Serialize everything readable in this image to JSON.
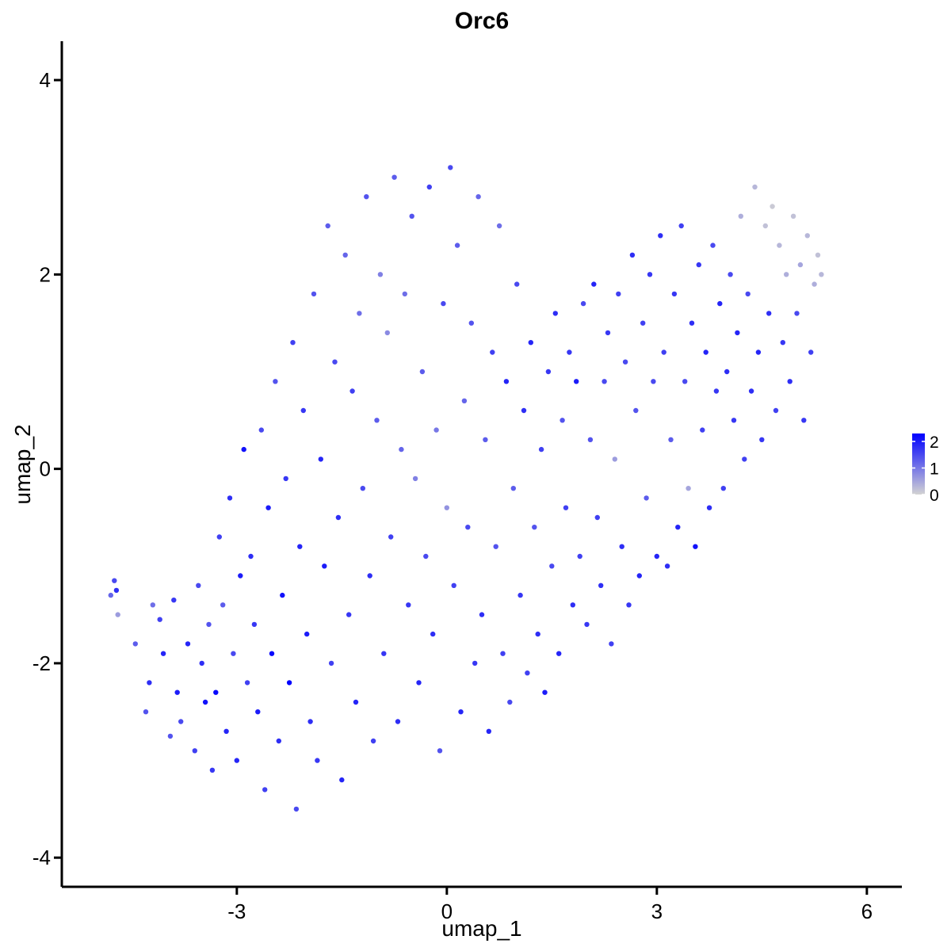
{
  "chart_data": {
    "type": "scatter",
    "title": "Orc6",
    "xlabel": "umap_1",
    "ylabel": "umap_2",
    "xlim": [
      -5.5,
      6.5
    ],
    "ylim": [
      -4.3,
      4.4
    ],
    "x_ticks": [
      -3,
      0,
      3,
      6
    ],
    "y_ticks": [
      -4,
      -2,
      0,
      2,
      4
    ],
    "grid": false,
    "colors": {
      "low": "#d3d3d3",
      "high": "#0000ff"
    },
    "legend": {
      "placement": "right",
      "ticks": [
        0,
        1,
        2
      ],
      "range": [
        0,
        2.3
      ]
    },
    "points": [
      [
        -4.8,
        -1.3,
        1.2
      ],
      [
        -4.75,
        -1.15,
        1.5
      ],
      [
        -4.72,
        -1.25,
        1.8
      ],
      [
        -4.7,
        -1.5,
        0.6
      ],
      [
        -4.45,
        -1.8,
        1.3
      ],
      [
        -4.3,
        -2.5,
        1.4
      ],
      [
        -4.25,
        -2.2,
        1.8
      ],
      [
        -4.2,
        -1.4,
        1.1
      ],
      [
        -4.1,
        -1.55,
        1.6
      ],
      [
        -4.05,
        -1.9,
        1.9
      ],
      [
        -3.95,
        -2.75,
        1.4
      ],
      [
        -3.9,
        -1.35,
        1.7
      ],
      [
        -3.85,
        -2.3,
        2.0
      ],
      [
        -3.8,
        -2.6,
        1.5
      ],
      [
        -3.7,
        -1.8,
        1.9
      ],
      [
        -3.6,
        -2.9,
        1.6
      ],
      [
        -3.55,
        -1.2,
        1.5
      ],
      [
        -3.5,
        -2.0,
        1.8
      ],
      [
        -3.45,
        -2.4,
        2.1
      ],
      [
        -3.4,
        -1.6,
        1.4
      ],
      [
        -3.35,
        -3.1,
        1.7
      ],
      [
        -3.3,
        -2.3,
        2.2
      ],
      [
        -3.25,
        -0.7,
        1.6
      ],
      [
        -3.2,
        -1.4,
        1.3
      ],
      [
        -3.15,
        -2.7,
        1.9
      ],
      [
        -3.1,
        -0.3,
        1.8
      ],
      [
        -3.05,
        -1.9,
        1.5
      ],
      [
        -3.0,
        -3.0,
        1.9
      ],
      [
        -2.95,
        -1.1,
        2.0
      ],
      [
        -2.9,
        0.2,
        2.1
      ],
      [
        -2.85,
        -2.2,
        1.6
      ],
      [
        -2.8,
        -0.9,
        1.8
      ],
      [
        -2.75,
        -1.6,
        1.7
      ],
      [
        -2.7,
        -2.5,
        2.0
      ],
      [
        -2.65,
        0.4,
        1.5
      ],
      [
        -2.6,
        -3.3,
        1.6
      ],
      [
        -2.55,
        -0.4,
        2.0
      ],
      [
        -2.5,
        -1.9,
        2.2
      ],
      [
        -2.45,
        0.9,
        1.4
      ],
      [
        -2.4,
        -2.8,
        1.8
      ],
      [
        -2.35,
        -1.3,
        2.1
      ],
      [
        -2.3,
        -0.1,
        1.7
      ],
      [
        -2.25,
        -2.2,
        2.3
      ],
      [
        -2.2,
        1.3,
        1.6
      ],
      [
        -2.15,
        -3.5,
        1.5
      ],
      [
        -2.1,
        -0.8,
        1.9
      ],
      [
        -2.05,
        0.6,
        1.7
      ],
      [
        -2.0,
        -1.7,
        2.0
      ],
      [
        -1.95,
        -2.6,
        1.8
      ],
      [
        -1.9,
        1.8,
        1.4
      ],
      [
        -1.85,
        -3.0,
        1.7
      ],
      [
        -1.8,
        0.1,
        1.9
      ],
      [
        -1.75,
        -1.0,
        2.0
      ],
      [
        -1.7,
        2.5,
        1.3
      ],
      [
        -1.65,
        -2.0,
        1.6
      ],
      [
        -1.6,
        1.1,
        1.5
      ],
      [
        -1.55,
        -0.5,
        1.8
      ],
      [
        -1.5,
        -3.2,
        1.9
      ],
      [
        -1.45,
        2.2,
        1.2
      ],
      [
        -1.4,
        -1.5,
        1.7
      ],
      [
        -1.35,
        0.8,
        1.6
      ],
      [
        -1.3,
        -2.4,
        1.9
      ],
      [
        -1.25,
        1.6,
        1.1
      ],
      [
        -1.2,
        -0.2,
        1.5
      ],
      [
        -1.15,
        2.8,
        1.4
      ],
      [
        -1.1,
        -1.1,
        1.8
      ],
      [
        -1.05,
        -2.8,
        1.6
      ],
      [
        -1.0,
        0.5,
        1.3
      ],
      [
        -0.95,
        2.0,
        0.9
      ],
      [
        -0.9,
        -1.9,
        1.7
      ],
      [
        -0.85,
        1.4,
        0.8
      ],
      [
        -0.8,
        -0.7,
        1.6
      ],
      [
        -0.75,
        3.0,
        1.3
      ],
      [
        -0.7,
        -2.6,
        1.8
      ],
      [
        -0.65,
        0.2,
        1.2
      ],
      [
        -0.6,
        1.8,
        1.1
      ],
      [
        -0.55,
        -1.4,
        1.7
      ],
      [
        -0.5,
        2.6,
        1.4
      ],
      [
        -0.45,
        -0.1,
        0.9
      ],
      [
        -0.4,
        -2.2,
        1.9
      ],
      [
        -0.35,
        1.0,
        1.3
      ],
      [
        -0.3,
        -0.9,
        1.5
      ],
      [
        -0.25,
        2.9,
        1.6
      ],
      [
        -0.2,
        -1.7,
        1.8
      ],
      [
        -0.15,
        0.4,
        1.0
      ],
      [
        -0.1,
        -2.9,
        1.4
      ],
      [
        -0.05,
        1.7,
        1.5
      ],
      [
        0.0,
        -0.4,
        0.7
      ],
      [
        0.05,
        3.1,
        1.5
      ],
      [
        0.1,
        -1.2,
        1.6
      ],
      [
        0.15,
        2.3,
        1.3
      ],
      [
        0.2,
        -2.5,
        1.9
      ],
      [
        0.25,
        0.7,
        1.2
      ],
      [
        0.3,
        -0.6,
        1.5
      ],
      [
        0.35,
        1.5,
        1.4
      ],
      [
        0.4,
        -2.0,
        1.7
      ],
      [
        0.45,
        2.8,
        1.2
      ],
      [
        0.5,
        -1.5,
        1.8
      ],
      [
        0.55,
        0.3,
        1.3
      ],
      [
        0.6,
        -2.7,
        1.9
      ],
      [
        0.65,
        1.2,
        1.6
      ],
      [
        0.7,
        -0.8,
        1.4
      ],
      [
        0.75,
        2.5,
        1.1
      ],
      [
        0.8,
        -1.9,
        1.6
      ],
      [
        0.85,
        0.9,
        1.9
      ],
      [
        0.9,
        -2.4,
        1.5
      ],
      [
        0.95,
        -0.2,
        1.3
      ],
      [
        1.0,
        1.9,
        1.5
      ],
      [
        1.05,
        -1.3,
        1.7
      ],
      [
        1.1,
        0.6,
        1.8
      ],
      [
        1.15,
        -2.1,
        1.6
      ],
      [
        1.2,
        1.3,
        1.9
      ],
      [
        1.25,
        -0.6,
        1.4
      ],
      [
        1.3,
        -1.7,
        1.8
      ],
      [
        1.35,
        0.2,
        1.6
      ],
      [
        1.4,
        -2.3,
        2.0
      ],
      [
        1.45,
        1.0,
        1.7
      ],
      [
        1.5,
        -1.0,
        1.5
      ],
      [
        1.55,
        1.6,
        1.8
      ],
      [
        1.6,
        -1.9,
        1.9
      ],
      [
        1.65,
        0.5,
        1.4
      ],
      [
        1.7,
        -0.4,
        1.6
      ],
      [
        1.75,
        1.2,
        1.7
      ],
      [
        1.8,
        -1.4,
        1.8
      ],
      [
        1.85,
        0.9,
        2.0
      ],
      [
        1.9,
        -0.9,
        1.6
      ],
      [
        1.95,
        1.7,
        1.5
      ],
      [
        2.0,
        -1.6,
        1.7
      ],
      [
        2.05,
        0.3,
        1.4
      ],
      [
        2.1,
        1.9,
        1.9
      ],
      [
        2.15,
        -0.5,
        1.6
      ],
      [
        2.2,
        -1.2,
        1.8
      ],
      [
        2.25,
        0.9,
        1.5
      ],
      [
        2.3,
        1.4,
        1.7
      ],
      [
        2.35,
        -1.8,
        1.6
      ],
      [
        2.4,
        0.1,
        0.6
      ],
      [
        2.45,
        1.8,
        1.6
      ],
      [
        2.5,
        -0.8,
        1.8
      ],
      [
        2.55,
        1.1,
        1.5
      ],
      [
        2.6,
        -1.4,
        1.7
      ],
      [
        2.65,
        2.2,
        1.8
      ],
      [
        2.7,
        0.6,
        1.4
      ],
      [
        2.75,
        -1.1,
        1.9
      ],
      [
        2.8,
        1.5,
        1.6
      ],
      [
        2.85,
        -0.3,
        1.3
      ],
      [
        2.9,
        2.0,
        1.7
      ],
      [
        2.95,
        0.9,
        1.5
      ],
      [
        3.0,
        -0.9,
        1.9
      ],
      [
        3.05,
        2.4,
        1.8
      ],
      [
        3.1,
        1.2,
        1.6
      ],
      [
        3.15,
        -1.0,
        1.8
      ],
      [
        3.2,
        0.3,
        1.3
      ],
      [
        3.25,
        1.8,
        1.7
      ],
      [
        3.3,
        -0.6,
        1.9
      ],
      [
        3.35,
        2.5,
        1.6
      ],
      [
        3.4,
        0.9,
        1.5
      ],
      [
        3.45,
        -0.2,
        0.5
      ],
      [
        3.5,
        1.5,
        1.8
      ],
      [
        3.55,
        -0.8,
        2.1
      ],
      [
        3.6,
        2.1,
        1.7
      ],
      [
        3.65,
        0.4,
        1.6
      ],
      [
        3.7,
        1.2,
        1.9
      ],
      [
        3.75,
        -0.4,
        1.8
      ],
      [
        3.8,
        2.3,
        1.5
      ],
      [
        3.85,
        0.8,
        1.7
      ],
      [
        3.9,
        1.7,
        1.9
      ],
      [
        3.95,
        -0.2,
        1.6
      ],
      [
        4.0,
        1.0,
        1.8
      ],
      [
        4.05,
        2.0,
        1.5
      ],
      [
        4.1,
        0.5,
        1.7
      ],
      [
        4.15,
        1.4,
        1.9
      ],
      [
        4.2,
        2.6,
        0.4
      ],
      [
        4.25,
        0.1,
        1.6
      ],
      [
        4.3,
        1.8,
        1.5
      ],
      [
        4.35,
        0.8,
        1.8
      ],
      [
        4.4,
        2.9,
        0.3
      ],
      [
        4.45,
        1.2,
        1.9
      ],
      [
        4.5,
        0.3,
        1.7
      ],
      [
        4.55,
        2.5,
        0.2
      ],
      [
        4.6,
        1.6,
        1.8
      ],
      [
        4.65,
        2.7,
        0.1
      ],
      [
        4.7,
        0.6,
        1.6
      ],
      [
        4.75,
        2.3,
        0.3
      ],
      [
        4.8,
        1.3,
        1.7
      ],
      [
        4.85,
        2.0,
        0.4
      ],
      [
        4.9,
        0.9,
        1.8
      ],
      [
        4.95,
        2.6,
        0.2
      ],
      [
        5.0,
        1.6,
        1.5
      ],
      [
        5.05,
        2.1,
        0.5
      ],
      [
        5.1,
        0.5,
        1.7
      ],
      [
        5.15,
        2.4,
        0.3
      ],
      [
        5.2,
        1.2,
        1.6
      ],
      [
        5.25,
        1.9,
        0.4
      ],
      [
        5.3,
        2.2,
        0.2
      ],
      [
        5.35,
        2.0,
        0.3
      ]
    ]
  }
}
